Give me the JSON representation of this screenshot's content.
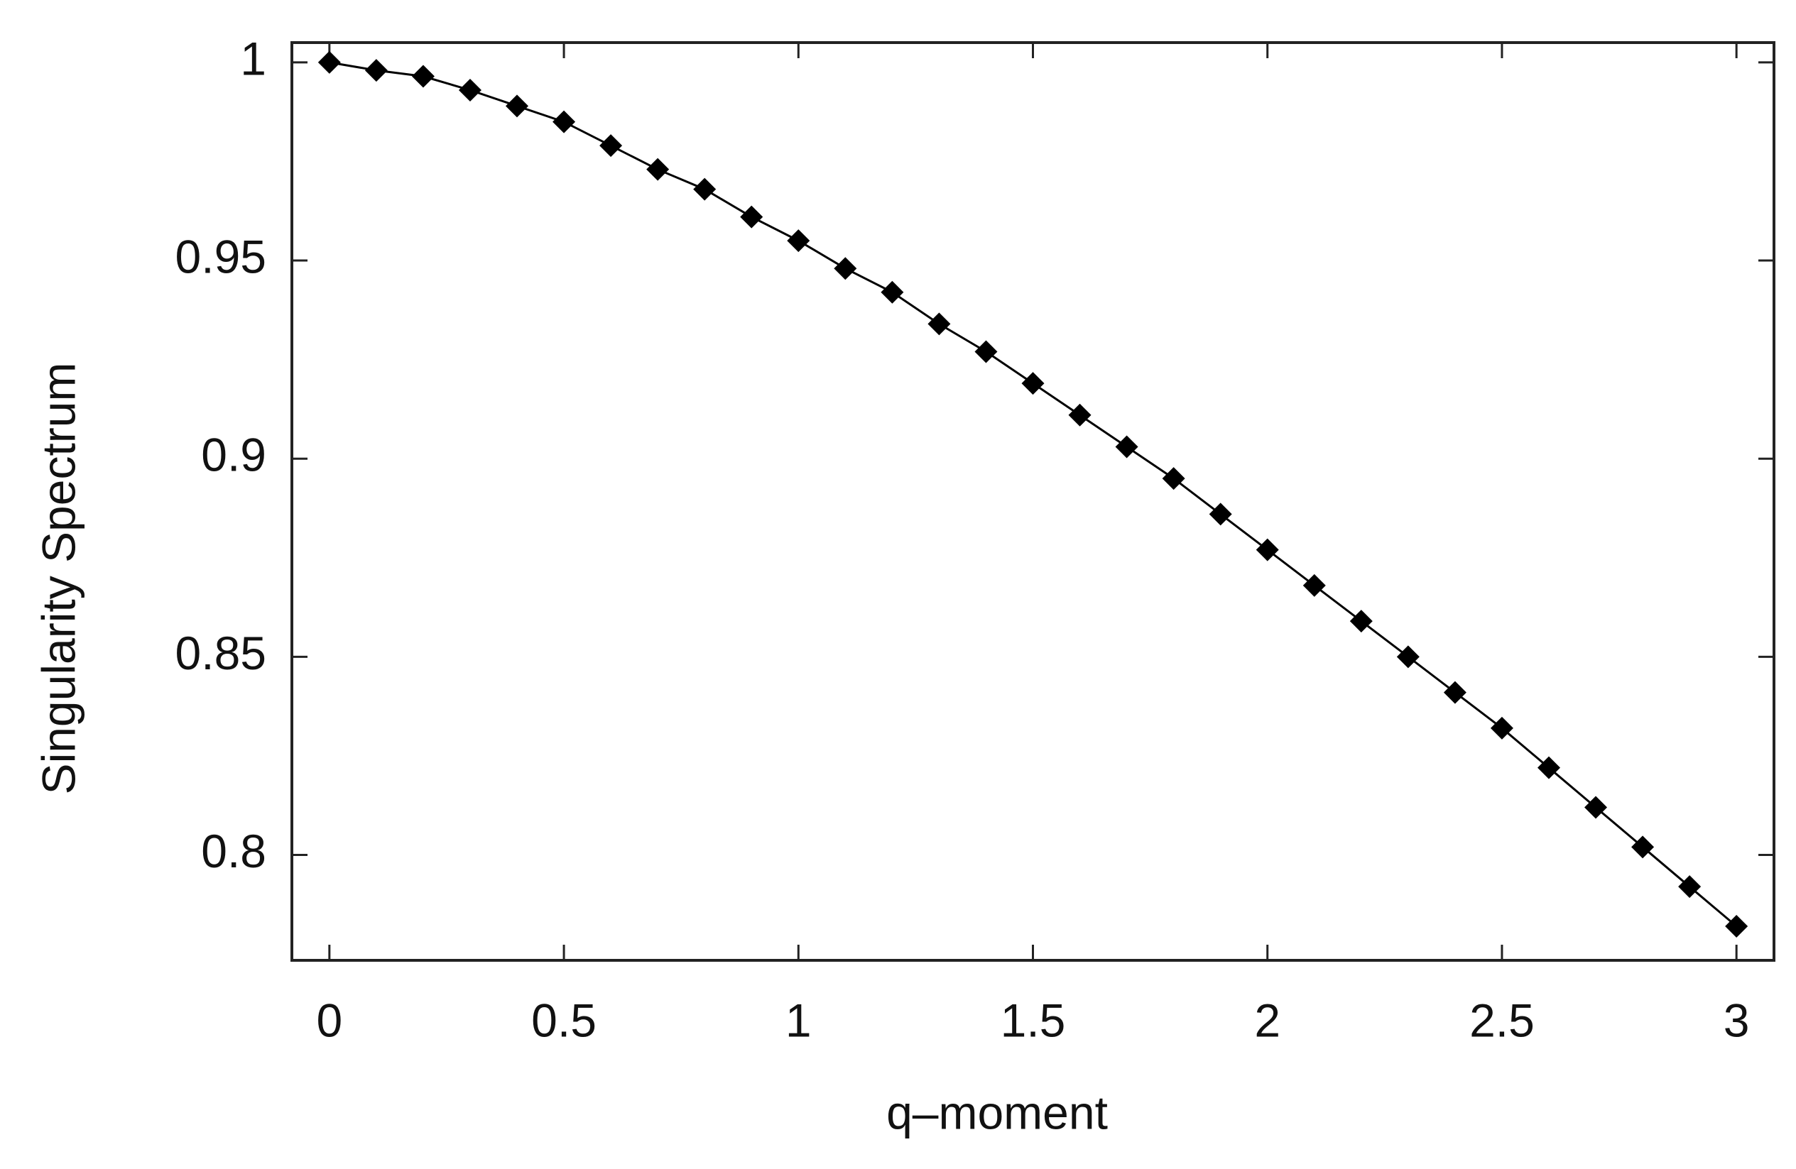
{
  "chart_data": {
    "type": "scatter",
    "x_label": "q–moment",
    "y_label": "Singularity Spectrum",
    "series": [
      {
        "color": "#000000",
        "x": [
          0,
          0.1,
          0.2,
          0.3,
          0.4,
          0.5,
          0.6,
          0.7,
          0.8,
          0.9,
          1.0,
          1.1,
          1.2,
          1.3,
          1.4,
          1.5,
          1.6,
          1.7,
          1.8,
          1.9,
          2.0,
          2.1,
          2.2,
          2.3,
          2.4,
          2.5,
          2.6,
          2.7,
          2.8,
          2.9,
          3.0
        ],
        "values": [
          1.0,
          0.998,
          0.9965,
          0.993,
          0.989,
          0.985,
          0.979,
          0.973,
          0.968,
          0.961,
          0.955,
          0.948,
          0.942,
          0.934,
          0.927,
          0.919,
          0.911,
          0.903,
          0.895,
          0.886,
          0.877,
          0.868,
          0.859,
          0.85,
          0.841,
          0.832,
          0.822,
          0.812,
          0.802,
          0.792,
          0.782
        ]
      }
    ],
    "xlim": [
      -0.08,
      3.08
    ],
    "xticks": [
      0,
      0.5,
      1,
      1.5,
      2,
      2.5,
      3
    ],
    "ylim": [
      0.7734,
      1.005
    ],
    "yticks": [
      0.8,
      0.85,
      0.9,
      0.95,
      1
    ],
    "grid": false
  }
}
